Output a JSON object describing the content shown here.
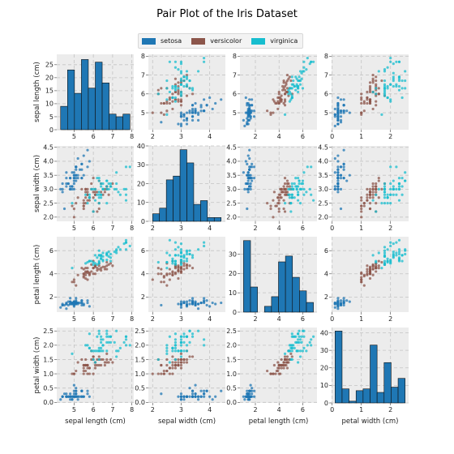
{
  "chart_data": {
    "type": "scatter",
    "subtype": "pair-plot",
    "title": "Pair Plot of the Iris Dataset",
    "variables": [
      "sepal length (cm)",
      "sepal width (cm)",
      "petal length (cm)",
      "petal width (cm)"
    ],
    "legend": {
      "placement": "top-center",
      "entries": [
        {
          "name": "setosa",
          "color": "#1f77b4"
        },
        {
          "name": "versicolor",
          "color": "#8c564b"
        },
        {
          "name": "virginica",
          "color": "#17becf"
        }
      ]
    },
    "axes": [
      {
        "name": "sepal length (cm)",
        "lim": [
          4.1,
          8.1
        ],
        "ticks": [
          5,
          6,
          7,
          8
        ],
        "tick_labels": [
          "5",
          "6",
          "7",
          "8"
        ]
      },
      {
        "name": "sepal width (cm)",
        "lim": [
          1.85,
          4.55
        ],
        "ticks": [
          2.0,
          2.5,
          3.0,
          3.5,
          4.0,
          4.5
        ],
        "tick_labels": [
          "2.0",
          "2.5",
          "3.0",
          "3.5",
          "4.0",
          "4.5"
        ],
        "ticks_x": [
          2,
          3,
          4
        ],
        "tick_labels_x": [
          "2",
          "3",
          "4"
        ]
      },
      {
        "name": "petal length (cm)",
        "lim": [
          0.7,
          7.2
        ],
        "ticks": [
          2,
          4,
          6
        ],
        "tick_labels": [
          "2",
          "4",
          "6"
        ]
      },
      {
        "name": "petal width (cm)",
        "lim": [
          -0.02,
          2.62
        ],
        "ticks": [
          0.0,
          0.5,
          1.0,
          1.5,
          2.0,
          2.5
        ],
        "tick_labels": [
          "0.0",
          "0.5",
          "1.0",
          "1.5",
          "2.0",
          "2.5"
        ],
        "ticks_x": [
          0,
          1,
          2
        ],
        "tick_labels_x": [
          "0",
          "1",
          "2"
        ]
      }
    ],
    "histograms": [
      {
        "variable": "sepal length (cm)",
        "bins": [
          4.3,
          4.66,
          5.02,
          5.38,
          5.74,
          6.1,
          6.46,
          6.82,
          7.18,
          7.54,
          7.9
        ],
        "counts": [
          9,
          23,
          14,
          27,
          16,
          26,
          18,
          6,
          5,
          6
        ],
        "ylim": [
          0,
          29
        ],
        "yticks": [
          0,
          5,
          10,
          15,
          20,
          25
        ],
        "ytick_labels": [
          "0",
          "5",
          "10",
          "15",
          "20",
          "25"
        ]
      },
      {
        "variable": "sepal width (cm)",
        "bins": [
          2.0,
          2.24,
          2.48,
          2.72,
          2.96,
          3.2,
          3.44,
          3.68,
          3.92,
          4.16,
          4.4
        ],
        "counts": [
          4,
          7,
          22,
          24,
          38,
          31,
          9,
          11,
          2,
          2
        ],
        "ylim": [
          0,
          40
        ],
        "yticks": [
          0,
          10,
          20,
          30,
          40
        ],
        "ytick_labels": [
          "0",
          "10",
          "20",
          "30",
          "40"
        ]
      },
      {
        "variable": "petal length (cm)",
        "bins": [
          1.0,
          1.59,
          2.18,
          2.77,
          3.36,
          3.95,
          4.54,
          5.13,
          5.72,
          6.31,
          6.9
        ],
        "counts": [
          37,
          13,
          0,
          3,
          8,
          26,
          29,
          18,
          11,
          5
        ],
        "ylim": [
          0,
          39
        ],
        "yticks": [
          0,
          10,
          20,
          30
        ],
        "ytick_labels": [
          "0",
          "10",
          "20",
          "30"
        ]
      },
      {
        "variable": "petal width (cm)",
        "bins": [
          0.1,
          0.34,
          0.58,
          0.82,
          1.06,
          1.3,
          1.54,
          1.78,
          2.02,
          2.26,
          2.5
        ],
        "counts": [
          41,
          8,
          1,
          7,
          8,
          33,
          6,
          23,
          9,
          14
        ],
        "ylim": [
          0,
          43
        ],
        "yticks": [
          0,
          10,
          20,
          30,
          40
        ],
        "ytick_labels": [
          "0",
          "10",
          "20",
          "30",
          "40"
        ]
      }
    ],
    "series": [
      {
        "name": "setosa",
        "color": "#1f77b4",
        "points": [
          [
            5.1,
            3.5,
            1.4,
            0.2
          ],
          [
            4.9,
            3.0,
            1.4,
            0.2
          ],
          [
            4.7,
            3.2,
            1.3,
            0.2
          ],
          [
            4.6,
            3.1,
            1.5,
            0.2
          ],
          [
            5.0,
            3.6,
            1.4,
            0.2
          ],
          [
            5.4,
            3.9,
            1.7,
            0.4
          ],
          [
            4.6,
            3.4,
            1.4,
            0.3
          ],
          [
            5.0,
            3.4,
            1.5,
            0.2
          ],
          [
            4.4,
            2.9,
            1.4,
            0.2
          ],
          [
            4.9,
            3.1,
            1.5,
            0.1
          ],
          [
            5.4,
            3.7,
            1.5,
            0.2
          ],
          [
            4.8,
            3.4,
            1.6,
            0.2
          ],
          [
            4.8,
            3.0,
            1.4,
            0.1
          ],
          [
            4.3,
            3.0,
            1.1,
            0.1
          ],
          [
            5.8,
            4.0,
            1.2,
            0.2
          ],
          [
            5.7,
            4.4,
            1.5,
            0.4
          ],
          [
            5.4,
            3.9,
            1.3,
            0.4
          ],
          [
            5.1,
            3.5,
            1.4,
            0.3
          ],
          [
            5.7,
            3.8,
            1.7,
            0.3
          ],
          [
            5.1,
            3.8,
            1.5,
            0.3
          ],
          [
            5.4,
            3.4,
            1.7,
            0.2
          ],
          [
            5.1,
            3.7,
            1.5,
            0.4
          ],
          [
            4.6,
            3.6,
            1.0,
            0.2
          ],
          [
            5.1,
            3.3,
            1.7,
            0.5
          ],
          [
            4.8,
            3.4,
            1.9,
            0.2
          ],
          [
            5.0,
            3.0,
            1.6,
            0.2
          ],
          [
            5.0,
            3.4,
            1.6,
            0.4
          ],
          [
            5.2,
            3.5,
            1.5,
            0.2
          ],
          [
            5.2,
            3.4,
            1.4,
            0.2
          ],
          [
            4.7,
            3.2,
            1.6,
            0.2
          ],
          [
            4.8,
            3.1,
            1.6,
            0.2
          ],
          [
            5.4,
            3.4,
            1.5,
            0.4
          ],
          [
            5.2,
            4.1,
            1.5,
            0.1
          ],
          [
            5.5,
            4.2,
            1.4,
            0.2
          ],
          [
            4.9,
            3.1,
            1.5,
            0.2
          ],
          [
            5.0,
            3.2,
            1.2,
            0.2
          ],
          [
            5.5,
            3.5,
            1.3,
            0.2
          ],
          [
            4.9,
            3.6,
            1.4,
            0.1
          ],
          [
            4.4,
            3.0,
            1.3,
            0.2
          ],
          [
            5.1,
            3.4,
            1.5,
            0.2
          ],
          [
            5.0,
            3.5,
            1.3,
            0.3
          ],
          [
            4.5,
            2.3,
            1.3,
            0.3
          ],
          [
            4.4,
            3.2,
            1.3,
            0.2
          ],
          [
            5.0,
            3.5,
            1.6,
            0.6
          ],
          [
            5.1,
            3.8,
            1.9,
            0.4
          ],
          [
            4.8,
            3.0,
            1.4,
            0.3
          ],
          [
            5.1,
            3.8,
            1.6,
            0.2
          ],
          [
            4.6,
            3.2,
            1.4,
            0.2
          ],
          [
            5.3,
            3.7,
            1.5,
            0.2
          ],
          [
            5.0,
            3.3,
            1.4,
            0.2
          ]
        ]
      },
      {
        "name": "versicolor",
        "color": "#8c564b",
        "points": [
          [
            7.0,
            3.2,
            4.7,
            1.4
          ],
          [
            6.4,
            3.2,
            4.5,
            1.5
          ],
          [
            6.9,
            3.1,
            4.9,
            1.5
          ],
          [
            5.5,
            2.3,
            4.0,
            1.3
          ],
          [
            6.5,
            2.8,
            4.6,
            1.5
          ],
          [
            5.7,
            2.8,
            4.5,
            1.3
          ],
          [
            6.3,
            3.3,
            4.7,
            1.6
          ],
          [
            4.9,
            2.4,
            3.3,
            1.0
          ],
          [
            6.6,
            2.9,
            4.6,
            1.3
          ],
          [
            5.2,
            2.7,
            3.9,
            1.4
          ],
          [
            5.0,
            2.0,
            3.5,
            1.0
          ],
          [
            5.9,
            3.0,
            4.2,
            1.5
          ],
          [
            6.0,
            2.2,
            4.0,
            1.0
          ],
          [
            6.1,
            2.9,
            4.7,
            1.4
          ],
          [
            5.6,
            2.9,
            3.6,
            1.3
          ],
          [
            6.7,
            3.1,
            4.4,
            1.4
          ],
          [
            5.6,
            3.0,
            4.5,
            1.5
          ],
          [
            5.8,
            2.7,
            4.1,
            1.0
          ],
          [
            6.2,
            2.2,
            4.5,
            1.5
          ],
          [
            5.6,
            2.5,
            3.9,
            1.1
          ],
          [
            5.9,
            3.2,
            4.8,
            1.8
          ],
          [
            6.1,
            2.8,
            4.0,
            1.3
          ],
          [
            6.3,
            2.5,
            4.9,
            1.5
          ],
          [
            6.1,
            2.8,
            4.7,
            1.2
          ],
          [
            6.4,
            2.9,
            4.3,
            1.3
          ],
          [
            6.6,
            3.0,
            4.4,
            1.4
          ],
          [
            6.8,
            2.8,
            4.8,
            1.4
          ],
          [
            6.7,
            3.0,
            5.0,
            1.7
          ],
          [
            6.0,
            2.9,
            4.5,
            1.5
          ],
          [
            5.7,
            2.6,
            3.5,
            1.0
          ],
          [
            5.5,
            2.4,
            3.8,
            1.1
          ],
          [
            5.5,
            2.4,
            3.7,
            1.0
          ],
          [
            5.8,
            2.7,
            3.9,
            1.2
          ],
          [
            6.0,
            2.7,
            5.1,
            1.6
          ],
          [
            5.4,
            3.0,
            4.5,
            1.5
          ],
          [
            6.0,
            3.4,
            4.5,
            1.6
          ],
          [
            6.7,
            3.1,
            4.7,
            1.5
          ],
          [
            6.3,
            2.3,
            4.4,
            1.3
          ],
          [
            5.6,
            3.0,
            4.1,
            1.3
          ],
          [
            5.5,
            2.5,
            4.0,
            1.3
          ],
          [
            5.5,
            2.6,
            4.4,
            1.2
          ],
          [
            6.1,
            3.0,
            4.6,
            1.4
          ],
          [
            5.8,
            2.6,
            4.0,
            1.2
          ],
          [
            5.0,
            2.3,
            3.3,
            1.0
          ],
          [
            5.6,
            2.7,
            4.2,
            1.3
          ],
          [
            5.7,
            3.0,
            4.2,
            1.2
          ],
          [
            5.7,
            2.9,
            4.2,
            1.3
          ],
          [
            6.2,
            2.9,
            4.3,
            1.3
          ],
          [
            5.1,
            2.5,
            3.0,
            1.1
          ],
          [
            5.7,
            2.8,
            4.1,
            1.3
          ]
        ]
      },
      {
        "name": "virginica",
        "color": "#17becf",
        "points": [
          [
            6.3,
            3.3,
            6.0,
            2.5
          ],
          [
            5.8,
            2.7,
            5.1,
            1.9
          ],
          [
            7.1,
            3.0,
            5.9,
            2.1
          ],
          [
            6.3,
            2.9,
            5.6,
            1.8
          ],
          [
            6.5,
            3.0,
            5.8,
            2.2
          ],
          [
            7.6,
            3.0,
            6.6,
            2.1
          ],
          [
            4.9,
            2.5,
            4.5,
            1.7
          ],
          [
            7.3,
            2.9,
            6.3,
            1.8
          ],
          [
            6.7,
            2.5,
            5.8,
            1.8
          ],
          [
            7.2,
            3.6,
            6.1,
            2.5
          ],
          [
            6.5,
            3.2,
            5.1,
            2.0
          ],
          [
            6.4,
            2.7,
            5.3,
            1.9
          ],
          [
            6.8,
            3.0,
            5.5,
            2.1
          ],
          [
            5.7,
            2.5,
            5.0,
            2.0
          ],
          [
            5.8,
            2.8,
            5.1,
            2.4
          ],
          [
            6.4,
            3.2,
            5.3,
            2.3
          ],
          [
            6.5,
            3.0,
            5.5,
            1.8
          ],
          [
            7.7,
            3.8,
            6.7,
            2.2
          ],
          [
            7.7,
            2.6,
            6.9,
            2.3
          ],
          [
            6.0,
            2.2,
            5.0,
            1.5
          ],
          [
            6.9,
            3.2,
            5.7,
            2.3
          ],
          [
            5.6,
            2.8,
            4.9,
            2.0
          ],
          [
            7.7,
            2.8,
            6.7,
            2.0
          ],
          [
            6.3,
            2.7,
            4.9,
            1.8
          ],
          [
            6.7,
            3.3,
            5.7,
            2.1
          ],
          [
            7.2,
            3.2,
            6.0,
            1.8
          ],
          [
            6.2,
            2.8,
            4.8,
            1.8
          ],
          [
            6.1,
            3.0,
            4.9,
            1.8
          ],
          [
            6.4,
            2.8,
            5.6,
            2.1
          ],
          [
            7.2,
            3.0,
            5.8,
            1.6
          ],
          [
            7.4,
            2.8,
            6.1,
            1.9
          ],
          [
            7.9,
            3.8,
            6.4,
            2.0
          ],
          [
            6.4,
            2.8,
            5.6,
            2.2
          ],
          [
            6.3,
            2.8,
            5.1,
            1.5
          ],
          [
            6.1,
            2.6,
            5.6,
            1.4
          ],
          [
            7.7,
            3.0,
            6.1,
            2.3
          ],
          [
            6.3,
            3.4,
            5.6,
            2.4
          ],
          [
            6.4,
            3.1,
            5.5,
            1.8
          ],
          [
            6.0,
            3.0,
            4.8,
            1.8
          ],
          [
            6.9,
            3.1,
            5.4,
            2.1
          ],
          [
            6.7,
            3.1,
            5.6,
            2.4
          ],
          [
            6.9,
            3.1,
            5.1,
            2.3
          ],
          [
            5.8,
            2.7,
            5.1,
            1.9
          ],
          [
            6.8,
            3.2,
            5.9,
            2.3
          ],
          [
            6.7,
            3.3,
            5.7,
            2.5
          ],
          [
            6.7,
            3.0,
            5.2,
            2.3
          ],
          [
            6.3,
            2.5,
            5.0,
            1.9
          ],
          [
            6.5,
            3.0,
            5.2,
            2.0
          ],
          [
            6.2,
            3.4,
            5.4,
            2.3
          ],
          [
            5.9,
            3.0,
            5.1,
            1.8
          ]
        ]
      }
    ],
    "grid": true,
    "hist_color": "#1f77b4",
    "panel_background": "#ececec"
  }
}
